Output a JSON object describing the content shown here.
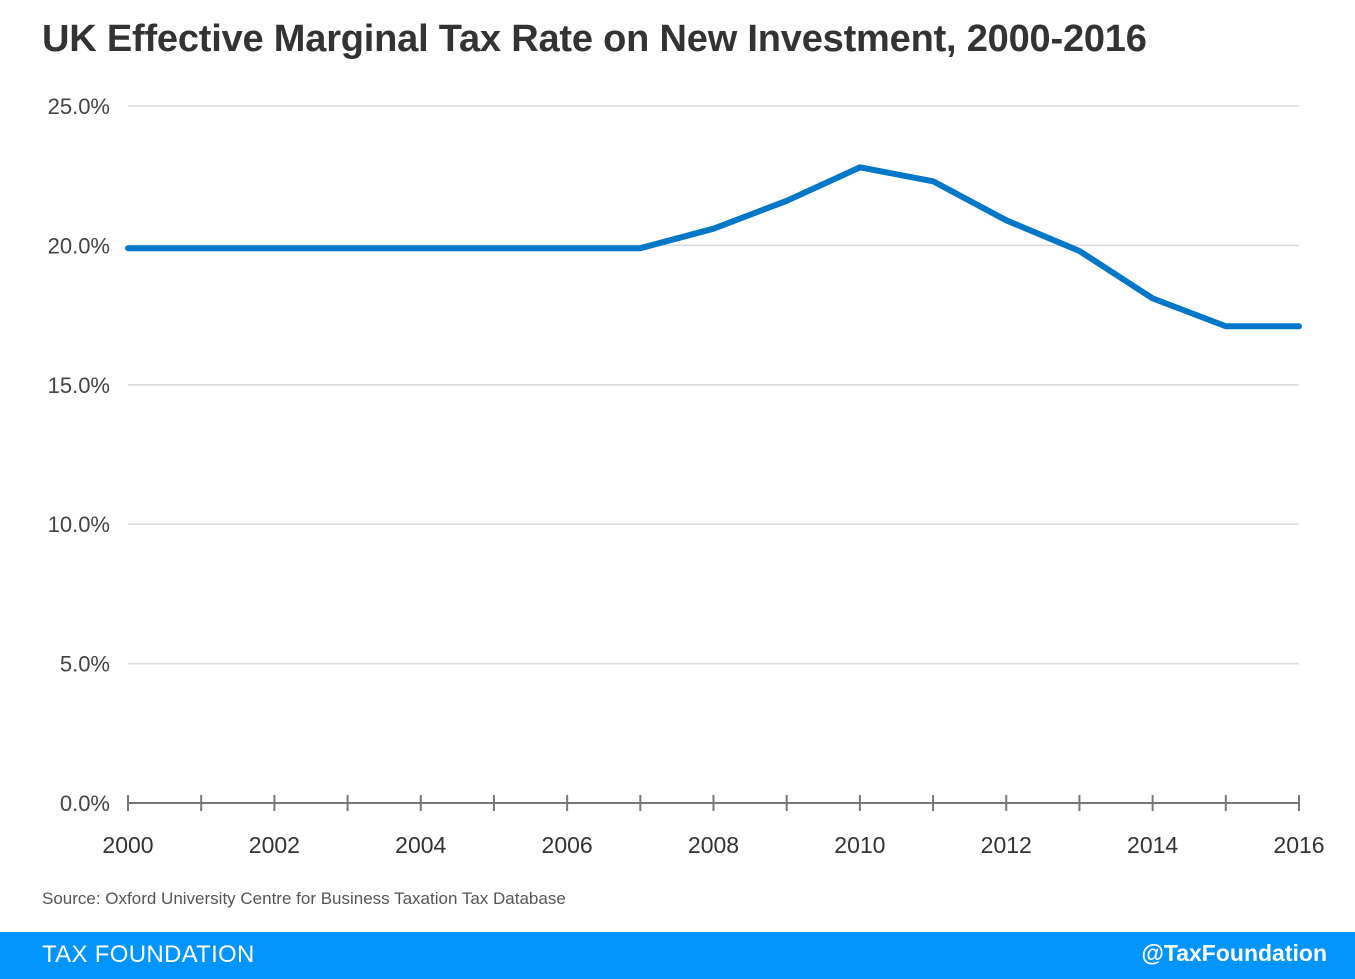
{
  "title": "UK Effective Marginal Tax Rate on New Investment, 2000-2016",
  "source": "Source: Oxford University Centre for Business Taxation Tax Database",
  "footer": {
    "brand": "TAX FOUNDATION",
    "handle": "@TaxFoundation"
  },
  "colors": {
    "line": "#0077c8",
    "grid": "#d9d9d9",
    "axis": "#777777",
    "footer": "#0094ff"
  },
  "chart_data": {
    "type": "line",
    "title": "UK Effective Marginal Tax Rate on New Investment, 2000-2016",
    "xlabel": "",
    "ylabel": "",
    "x": [
      2000,
      2001,
      2002,
      2003,
      2004,
      2005,
      2006,
      2007,
      2008,
      2009,
      2010,
      2011,
      2012,
      2013,
      2014,
      2015,
      2016
    ],
    "series": [
      {
        "name": "Effective Marginal Tax Rate",
        "values": [
          19.9,
          19.9,
          19.9,
          19.9,
          19.9,
          19.9,
          19.9,
          19.9,
          20.6,
          21.6,
          22.8,
          22.3,
          20.9,
          19.8,
          18.1,
          17.1,
          17.1
        ]
      }
    ],
    "xlim": [
      2000,
      2016
    ],
    "ylim": [
      0,
      25
    ],
    "x_tick_labels": [
      "2000",
      "2002",
      "2004",
      "2006",
      "2008",
      "2010",
      "2012",
      "2014",
      "2016"
    ],
    "x_tick_values": [
      2000,
      2002,
      2004,
      2006,
      2008,
      2010,
      2012,
      2014,
      2016
    ],
    "y_tick_labels": [
      "0.0%",
      "5.0%",
      "10.0%",
      "15.0%",
      "20.0%",
      "25.0%"
    ],
    "y_tick_values": [
      0,
      5,
      10,
      15,
      20,
      25
    ],
    "grid": true,
    "legend": "none"
  }
}
